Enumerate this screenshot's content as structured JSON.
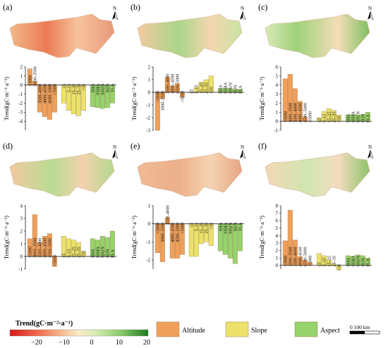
{
  "legend": {
    "title": "Trend(gC·m⁻²·a⁻¹)",
    "ticks": [
      "−20",
      "−10",
      "0",
      "10",
      "20"
    ],
    "colors": [
      "#d7191c",
      "#ef6a4b",
      "#f6a86f",
      "#fce3bd",
      "#d6ecb1",
      "#8ccc6b",
      "#3c9a34",
      "#1a7a1f"
    ],
    "groups": [
      {
        "label": "Altitude",
        "color": "#f0a05a"
      },
      {
        "label": "Slope",
        "color": "#ece26a"
      },
      {
        "label": "Aspect",
        "color": "#96d36a"
      }
    ],
    "scale_label": "0  100 km",
    "north_label": "N"
  },
  "chart_data": [
    {
      "type": "bar",
      "panel": "(a)",
      "ylabel": "Trend(gC·m⁻²·a⁻¹)",
      "ylim": [
        -5,
        2
      ],
      "yticks": [
        2,
        1,
        0,
        -1,
        -2,
        -3,
        -4
      ],
      "categories": [
        "<3000",
        "3000–3500",
        "3500–4000",
        "4000–4500",
        "4500–5000",
        ">5000",
        "≤5",
        "5–15",
        "15–25",
        "25–35",
        ">35",
        "SHA",
        "SSHA",
        "SSUN",
        "SUN",
        "FLA"
      ],
      "groups": [
        "Altitude",
        "Altitude",
        "Altitude",
        "Altitude",
        "Altitude",
        "Altitude",
        "Slope",
        "Slope",
        "Slope",
        "Slope",
        "Slope",
        "Aspect",
        "Aspect",
        "Aspect",
        "Aspect",
        "Aspect"
      ],
      "values": [
        1.8,
        0.4,
        -3.0,
        -3.5,
        -3.8,
        -3.0,
        -2.0,
        -2.8,
        -3.2,
        -3.4,
        -2.8,
        -2.4,
        -2.5,
        -2.6,
        -2.5,
        -2.0
      ]
    },
    {
      "type": "bar",
      "panel": "(b)",
      "ylabel": "Trend(gC·m⁻²·a⁻¹)",
      "ylim": [
        -3,
        2
      ],
      "yticks": [
        2,
        1,
        0,
        -1,
        -2,
        -3
      ],
      "categories": [
        "<3000",
        "3000–3500",
        "3500–4000",
        "4000–4500",
        "4500–5000",
        ">5000",
        "≤5",
        "5–15",
        "15–25",
        "25–35",
        ">35",
        "SHA",
        "SSHA",
        "SSUN",
        "SUN",
        "FLA"
      ],
      "groups": [
        "Altitude",
        "Altitude",
        "Altitude",
        "Altitude",
        "Altitude",
        "Altitude",
        "Slope",
        "Slope",
        "Slope",
        "Slope",
        "Slope",
        "Aspect",
        "Aspect",
        "Aspect",
        "Aspect",
        "Aspect"
      ],
      "values": [
        -3.0,
        -0.5,
        1.2,
        0.5,
        0.7,
        -0.4,
        0.05,
        0.4,
        0.8,
        1.0,
        1.3,
        0.3,
        0.35,
        0.3,
        0.25,
        0.25
      ]
    },
    {
      "type": "bar",
      "panel": "(c)",
      "ylabel": "Trend(gC·m⁻²·a⁻¹)",
      "ylim": [
        -1,
        6
      ],
      "yticks": [
        6,
        5,
        4,
        3,
        2,
        1,
        0,
        -1
      ],
      "categories": [
        "<3000",
        "3000–3500",
        "3500–4000",
        "4000–4500",
        "4500–5000",
        ">5000",
        "≤5",
        "5–15",
        "15–25",
        "25–35",
        ">35",
        "SHA",
        "SSHA",
        "SSUN",
        "SUN",
        "FLA"
      ],
      "groups": [
        "Altitude",
        "Altitude",
        "Altitude",
        "Altitude",
        "Altitude",
        "Altitude",
        "Slope",
        "Slope",
        "Slope",
        "Slope",
        "Slope",
        "Aspect",
        "Aspect",
        "Aspect",
        "Aspect",
        "Aspect"
      ],
      "values": [
        4.7,
        5.2,
        3.6,
        2.2,
        0.5,
        0.05,
        0.4,
        1.1,
        1.4,
        1.2,
        0.7,
        0.7,
        0.75,
        0.7,
        0.75,
        1.0
      ]
    },
    {
      "type": "bar",
      "panel": "(d)",
      "ylabel": "Trend(gC·m⁻²·a⁻¹)",
      "ylim": [
        -1,
        4
      ],
      "yticks": [
        4,
        3,
        2,
        1,
        0,
        -1
      ],
      "categories": [
        "<3000",
        "3000–3500",
        "3500–4000",
        "4000–4500",
        "4500–5000",
        ">5000",
        "≤5",
        "5–15",
        "15–25",
        "25–35",
        ">35",
        "SHA",
        "SSHA",
        "SSUN",
        "SUN",
        "FLA"
      ],
      "groups": [
        "Altitude",
        "Altitude",
        "Altitude",
        "Altitude",
        "Altitude",
        "Altitude",
        "Slope",
        "Slope",
        "Slope",
        "Slope",
        "Slope",
        "Aspect",
        "Aspect",
        "Aspect",
        "Aspect",
        "Aspect"
      ],
      "values": [
        1.4,
        3.3,
        1.1,
        1.6,
        1.8,
        -0.8,
        1.6,
        1.4,
        1.3,
        1.1,
        0.4,
        1.4,
        1.3,
        1.6,
        1.5,
        2.0
      ]
    },
    {
      "type": "bar",
      "panel": "(e)",
      "ylabel": "Trend(gC·m⁻²·a⁻¹)",
      "ylim": [
        -2.5,
        1
      ],
      "yticks": [
        1,
        0,
        -1,
        -2
      ],
      "categories": [
        "<3000",
        "3000–3500",
        "3500–4000",
        "4000–4500",
        "4500–5000",
        ">5000",
        "≤5",
        "5–15",
        "15–25",
        "25–35",
        ">35",
        "SHA",
        "SSHA",
        "SSUN",
        "SUN",
        "FLA"
      ],
      "groups": [
        "Altitude",
        "Altitude",
        "Altitude",
        "Altitude",
        "Altitude",
        "Altitude",
        "Slope",
        "Slope",
        "Slope",
        "Slope",
        "Slope",
        "Aspect",
        "Aspect",
        "Aspect",
        "Aspect",
        "Aspect"
      ],
      "values": [
        -1.6,
        -2.1,
        0.35,
        -1.9,
        -1.9,
        -1.7,
        -1.8,
        -1.8,
        -1.1,
        -1.0,
        -1.2,
        -1.5,
        -1.7,
        -1.9,
        -2.2,
        -1.5
      ]
    },
    {
      "type": "bar",
      "panel": "(f)",
      "ylabel": "Trend(gC·m⁻²·a⁻¹)",
      "ylim": [
        -0.5,
        8
      ],
      "yticks": [
        8,
        7,
        6,
        5,
        4,
        3,
        2,
        1,
        0
      ],
      "categories": [
        "<3000",
        "3000–3500",
        "3500–4000",
        "4000–4500",
        "4500–5000",
        ">5000",
        "≤5",
        "5–15",
        "15–25",
        "25–35",
        ">35",
        "SHA",
        "SSHA",
        "SSUN",
        "SUN",
        "FLA"
      ],
      "groups": [
        "Altitude",
        "Altitude",
        "Altitude",
        "Altitude",
        "Altitude",
        "Altitude",
        "Slope",
        "Slope",
        "Slope",
        "Slope",
        "Slope",
        "Aspect",
        "Aspect",
        "Aspect",
        "Aspect",
        "Aspect"
      ],
      "values": [
        3.3,
        7.4,
        3.4,
        1.2,
        0.7,
        0.4,
        1.6,
        1.3,
        0.7,
        0.2,
        -0.6,
        1.3,
        1.2,
        1.4,
        1.3,
        1.0
      ]
    }
  ]
}
